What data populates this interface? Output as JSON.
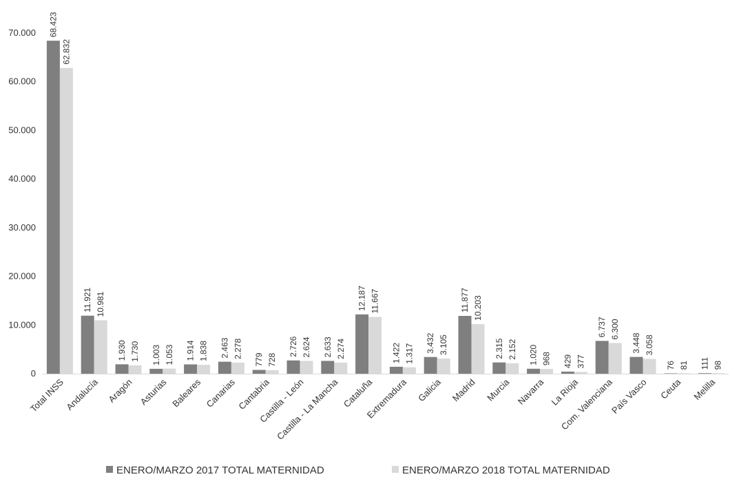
{
  "chart_data": {
    "type": "bar",
    "categories": [
      "Total INSS",
      "Andalucía",
      "Aragón",
      "Asturias",
      "Baleares",
      "Canarias",
      "Cantabria",
      "Castilla - León",
      "Castilla - La Mancha",
      "Cataluña",
      "Extremadura",
      "Galicia",
      "Madrid",
      "Murcia",
      "Navarra",
      "La Rioja",
      "Com. Valenciana",
      "País Vasco",
      "Ceuta",
      "Melilla"
    ],
    "series": [
      {
        "name": "ENERO/MARZO 2017 TOTAL MATERNIDAD",
        "color": "#7f7f7f",
        "values": [
          68423,
          11921,
          1930,
          1003,
          1914,
          2463,
          779,
          2726,
          2633,
          12187,
          1422,
          3432,
          11877,
          2315,
          1020,
          429,
          6737,
          3448,
          76,
          111
        ],
        "labels": [
          "68.423",
          "11.921",
          "1.930",
          "1.003",
          "1.914",
          "2.463",
          "779",
          "2.726",
          "2.633",
          "12.187",
          "1.422",
          "3.432",
          "11.877",
          "2.315",
          "1.020",
          "429",
          "6.737",
          "3.448",
          "76",
          "111"
        ]
      },
      {
        "name": "ENERO/MARZO 2018 TOTAL MATERNIDAD",
        "color": "#d9d9d9",
        "values": [
          62832,
          10981,
          1730,
          1053,
          1838,
          2278,
          728,
          2624,
          2274,
          11667,
          1317,
          3105,
          10203,
          2152,
          968,
          377,
          6300,
          3058,
          81,
          98
        ],
        "labels": [
          "62.832",
          "10.981",
          "1.730",
          "1.053",
          "1.838",
          "2.278",
          "728",
          "2.624",
          "2.274",
          "11.667",
          "1.317",
          "3.105",
          "10.203",
          "2.152",
          "968",
          "377",
          "6.300",
          "3.058",
          "81",
          "98"
        ]
      }
    ],
    "ylim": [
      0,
      70000
    ],
    "yticks": [
      {
        "value": 0,
        "label": "0"
      },
      {
        "value": 10000,
        "label": "10.000"
      },
      {
        "value": 20000,
        "label": "20.000"
      },
      {
        "value": 30000,
        "label": "30.000"
      },
      {
        "value": 40000,
        "label": "40.000"
      },
      {
        "value": 50000,
        "label": "50.000"
      },
      {
        "value": 60000,
        "label": "60.000"
      },
      {
        "value": 70000,
        "label": "70.000"
      }
    ],
    "grid": false,
    "legend_position": "bottom"
  }
}
